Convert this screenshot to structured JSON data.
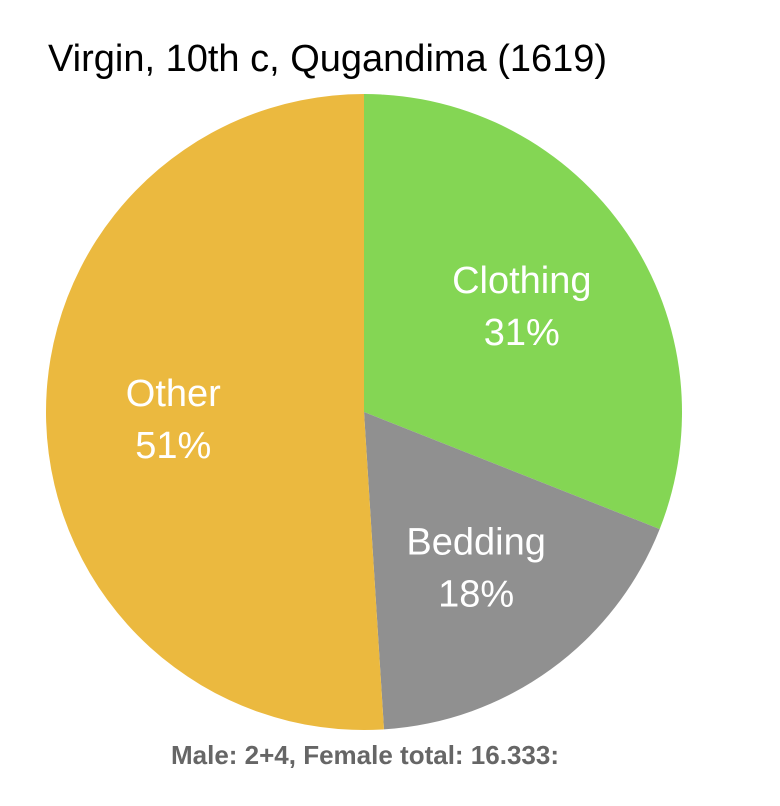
{
  "chart_data": {
    "type": "pie",
    "title": "Virgin, 10th c, Qugandima (1619)",
    "note": "Male: 2+4, Female total: 16.333:",
    "slices": [
      {
        "label": "Clothing",
        "value": 31,
        "value_label": "31%",
        "color": "#84d654"
      },
      {
        "label": "Bedding",
        "value": 18,
        "value_label": "18%",
        "color": "#909090"
      },
      {
        "label": "Other",
        "value": 51,
        "value_label": "51%",
        "color": "#ebb93f"
      }
    ],
    "start": "12 o'clock",
    "direction": "clockwise",
    "legend": "none"
  }
}
